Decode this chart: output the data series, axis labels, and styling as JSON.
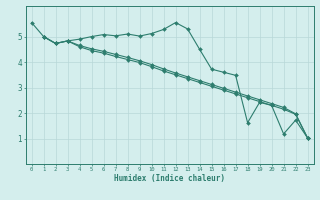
{
  "title": "",
  "xlabel": "Humidex (Indice chaleur)",
  "bg_color": "#d4eeed",
  "grid_color": "#b8d8d8",
  "line_color": "#2d7d6e",
  "xlim": [
    -0.5,
    23.5
  ],
  "ylim": [
    0,
    6.2
  ],
  "xticks": [
    0,
    1,
    2,
    3,
    4,
    5,
    6,
    7,
    8,
    9,
    10,
    11,
    12,
    13,
    14,
    15,
    16,
    17,
    18,
    19,
    20,
    21,
    22,
    23
  ],
  "yticks": [
    1,
    2,
    3,
    4,
    5
  ],
  "line1_x": [
    0,
    1,
    2,
    3,
    4,
    5,
    6,
    7,
    8,
    9,
    10,
    11,
    12,
    13,
    14,
    15,
    16,
    17,
    18,
    19,
    20,
    21,
    22,
    23
  ],
  "line1_y": [
    5.55,
    5.0,
    4.73,
    4.83,
    4.9,
    5.0,
    5.08,
    5.03,
    5.1,
    5.02,
    5.12,
    5.28,
    5.55,
    5.3,
    4.5,
    3.72,
    3.6,
    3.48,
    1.62,
    2.42,
    2.3,
    1.18,
    1.72,
    1.02
  ],
  "line2_x": [
    1,
    2,
    3,
    4,
    5,
    6,
    7,
    8,
    9,
    10,
    11,
    12,
    13,
    14,
    15,
    16,
    17,
    18,
    19,
    20,
    21,
    22,
    23
  ],
  "line2_y": [
    5.0,
    4.73,
    4.83,
    4.6,
    4.45,
    4.35,
    4.22,
    4.1,
    3.98,
    3.82,
    3.65,
    3.5,
    3.35,
    3.2,
    3.05,
    2.9,
    2.75,
    2.6,
    2.45,
    2.3,
    2.15,
    1.95,
    1.02
  ],
  "line3_x": [
    1,
    2,
    3,
    4,
    5,
    6,
    7,
    8,
    9,
    10,
    11,
    12,
    13,
    14,
    15,
    16,
    17,
    18,
    19,
    20,
    21,
    22,
    23
  ],
  "line3_y": [
    5.0,
    4.73,
    4.83,
    4.65,
    4.52,
    4.42,
    4.3,
    4.18,
    4.05,
    3.9,
    3.73,
    3.57,
    3.42,
    3.27,
    3.12,
    2.97,
    2.82,
    2.67,
    2.52,
    2.37,
    2.22,
    1.97,
    1.02
  ]
}
